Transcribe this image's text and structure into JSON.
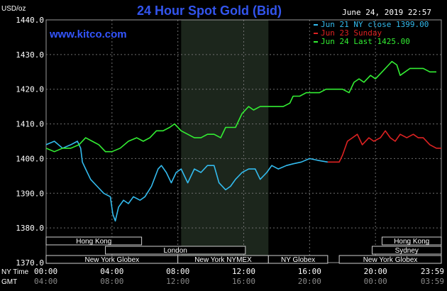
{
  "chart_data": {
    "type": "line",
    "title": "24 Hour Spot Gold (Bid)",
    "timestamp": "June 24, 2019 22:57",
    "brand": "www.kitco.com",
    "y_unit_label": "USD/oz",
    "ylim": [
      1370,
      1440
    ],
    "yticks": [
      "1440.0",
      "1430.0",
      "1420.0",
      "1410.0",
      "1400.0",
      "1390.0",
      "1380.0",
      "1370.0"
    ],
    "x_row_label_ny": "NY Time",
    "x_row_label_gmt": "GMT",
    "x_ticks_ny": [
      "00:00",
      "04:00",
      "08:00",
      "12:00",
      "16:00",
      "20:00",
      "23:59"
    ],
    "x_ticks_gmt": [
      "04:00",
      "08:00",
      "12:00",
      "16:00",
      "20:00",
      "00:00",
      "03:59"
    ],
    "x_tick_hours": [
      0,
      4,
      8,
      12,
      16,
      20,
      24
    ],
    "shaded_hours": [
      8.2,
      13.5
    ],
    "legend": [
      {
        "label": "Jun 21 NY close 1399.00",
        "color": "#33bbee"
      },
      {
        "label": "Jun 23 Sunday",
        "color": "#dd2222"
      },
      {
        "label": "Jun 24 Last 1425.00",
        "color": "#33ee33"
      }
    ],
    "series": [
      {
        "name": "Jun 21 NY close 1399.00",
        "color": "#33bbee",
        "points": [
          [
            0,
            1404
          ],
          [
            0.5,
            1405
          ],
          [
            1,
            1403
          ],
          [
            1.5,
            1404
          ],
          [
            1.9,
            1405
          ],
          [
            2.1,
            1403
          ],
          [
            2.2,
            1399
          ],
          [
            2.4,
            1397
          ],
          [
            2.7,
            1394
          ],
          [
            3.1,
            1392
          ],
          [
            3.5,
            1390
          ],
          [
            3.9,
            1389
          ],
          [
            4.05,
            1384
          ],
          [
            4.2,
            1382
          ],
          [
            4.4,
            1386
          ],
          [
            4.7,
            1388
          ],
          [
            5.0,
            1387
          ],
          [
            5.3,
            1389
          ],
          [
            5.7,
            1388
          ],
          [
            6.0,
            1389
          ],
          [
            6.4,
            1392
          ],
          [
            6.8,
            1397
          ],
          [
            7.0,
            1398
          ],
          [
            7.3,
            1396
          ],
          [
            7.6,
            1393
          ],
          [
            7.9,
            1396
          ],
          [
            8.2,
            1397
          ],
          [
            8.6,
            1393
          ],
          [
            9.0,
            1397
          ],
          [
            9.4,
            1396
          ],
          [
            9.8,
            1398
          ],
          [
            10.2,
            1398
          ],
          [
            10.5,
            1393
          ],
          [
            10.9,
            1391
          ],
          [
            11.2,
            1392
          ],
          [
            11.5,
            1394
          ],
          [
            11.9,
            1396
          ],
          [
            12.3,
            1397
          ],
          [
            12.7,
            1397
          ],
          [
            13.0,
            1394
          ],
          [
            13.4,
            1396
          ],
          [
            13.7,
            1398
          ],
          [
            14.1,
            1397
          ],
          [
            14.6,
            1398
          ],
          [
            15.0,
            1398.5
          ],
          [
            15.5,
            1399
          ],
          [
            16.0,
            1400
          ],
          [
            16.5,
            1399.5
          ],
          [
            17.1,
            1399
          ]
        ]
      },
      {
        "name": "Jun 23 Sunday",
        "color": "#dd2222",
        "points": [
          [
            17.1,
            1399
          ],
          [
            17.8,
            1399
          ],
          [
            18.0,
            1401
          ],
          [
            18.3,
            1405
          ],
          [
            18.6,
            1406
          ],
          [
            18.9,
            1407
          ],
          [
            19.2,
            1404
          ],
          [
            19.6,
            1406
          ],
          [
            19.9,
            1405
          ],
          [
            20.3,
            1406
          ],
          [
            20.6,
            1408
          ],
          [
            20.9,
            1406
          ],
          [
            21.2,
            1405
          ],
          [
            21.5,
            1407
          ],
          [
            21.9,
            1406
          ],
          [
            22.3,
            1407
          ],
          [
            22.6,
            1406
          ],
          [
            22.9,
            1406
          ],
          [
            23.3,
            1404
          ],
          [
            23.7,
            1403
          ],
          [
            24.0,
            1403
          ]
        ]
      },
      {
        "name": "Jun 24 Last 1425.00",
        "color": "#33ee33",
        "points": [
          [
            0,
            1403
          ],
          [
            0.5,
            1402
          ],
          [
            1,
            1403
          ],
          [
            1.5,
            1403
          ],
          [
            2.0,
            1404
          ],
          [
            2.4,
            1406
          ],
          [
            2.8,
            1405
          ],
          [
            3.2,
            1404
          ],
          [
            3.6,
            1402
          ],
          [
            4.0,
            1402
          ],
          [
            4.5,
            1403
          ],
          [
            5.0,
            1405
          ],
          [
            5.5,
            1406
          ],
          [
            5.9,
            1405
          ],
          [
            6.3,
            1406
          ],
          [
            6.7,
            1408
          ],
          [
            7.1,
            1408
          ],
          [
            7.5,
            1409
          ],
          [
            7.8,
            1410
          ],
          [
            8.2,
            1408
          ],
          [
            8.6,
            1407
          ],
          [
            9.0,
            1406
          ],
          [
            9.4,
            1406
          ],
          [
            9.8,
            1407
          ],
          [
            10.2,
            1407
          ],
          [
            10.6,
            1406
          ],
          [
            10.9,
            1409
          ],
          [
            11.2,
            1409
          ],
          [
            11.5,
            1409
          ],
          [
            11.9,
            1413
          ],
          [
            12.3,
            1415
          ],
          [
            12.6,
            1414
          ],
          [
            13.0,
            1415
          ],
          [
            13.5,
            1415
          ],
          [
            14.0,
            1415
          ],
          [
            14.4,
            1415
          ],
          [
            14.8,
            1416
          ],
          [
            15.0,
            1418
          ],
          [
            15.4,
            1418
          ],
          [
            15.8,
            1419
          ],
          [
            16.2,
            1419
          ],
          [
            16.6,
            1419
          ],
          [
            17.0,
            1420
          ],
          [
            17.5,
            1420
          ],
          [
            18.0,
            1420
          ],
          [
            18.4,
            1419
          ],
          [
            18.7,
            1422
          ],
          [
            19.0,
            1423
          ],
          [
            19.3,
            1422
          ],
          [
            19.7,
            1424
          ],
          [
            20.0,
            1423
          ],
          [
            20.4,
            1425
          ],
          [
            20.8,
            1427
          ],
          [
            21.0,
            1428
          ],
          [
            21.3,
            1427
          ],
          [
            21.5,
            1424
          ],
          [
            21.8,
            1425
          ],
          [
            22.1,
            1426
          ],
          [
            22.5,
            1426
          ],
          [
            22.9,
            1426
          ],
          [
            23.3,
            1425
          ],
          [
            23.7,
            1425
          ]
        ]
      }
    ],
    "sessions": [
      {
        "name": "Hong Kong",
        "start": 0,
        "end": 5.8,
        "row": 0
      },
      {
        "name": "Hong Kong",
        "start": 20.4,
        "end": 24,
        "row": 0
      },
      {
        "name": "London",
        "start": 3.6,
        "end": 12.1,
        "row": 1
      },
      {
        "name": "Sydney",
        "start": 19.8,
        "end": 24,
        "row": 1
      },
      {
        "name": "New York Globex",
        "start": 0,
        "end": 8.0,
        "row": 2
      },
      {
        "name": "New York NYMEX",
        "start": 8.0,
        "end": 13.5,
        "row": 2
      },
      {
        "name": "NY Globex",
        "start": 13.5,
        "end": 17.1,
        "row": 2
      },
      {
        "name": "New York Globex",
        "start": 17.8,
        "end": 24,
        "row": 2
      }
    ]
  }
}
